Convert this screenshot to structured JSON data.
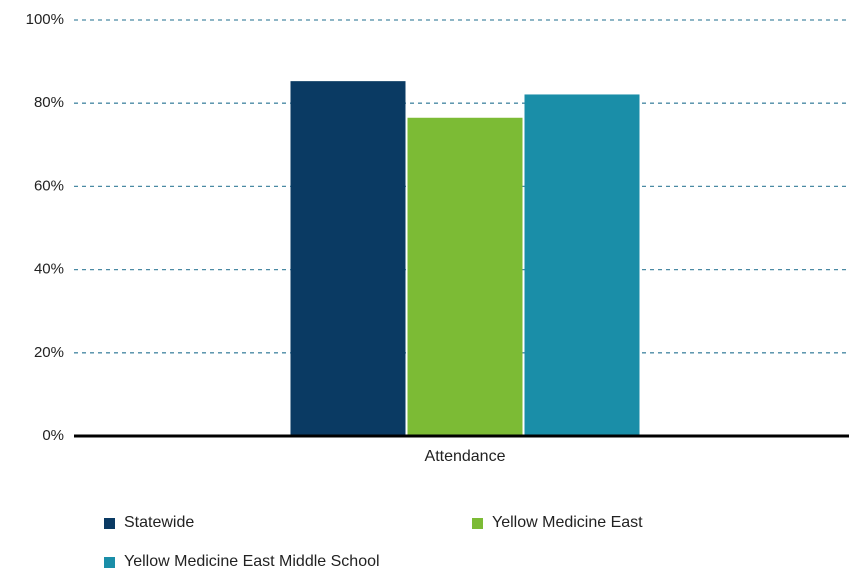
{
  "chart_data": {
    "type": "bar",
    "title": "",
    "xlabel": "",
    "ylabel": "",
    "categories": [
      "Attendance"
    ],
    "ylim": [
      0,
      100
    ],
    "yticks": [
      0,
      20,
      40,
      60,
      80,
      100
    ],
    "ytick_labels": [
      "0%",
      "20%",
      "40%",
      "60%",
      "80%",
      "100%"
    ],
    "grid": true,
    "legend_position": "bottom",
    "series": [
      {
        "name": "Statewide",
        "color": "#0a3a63",
        "values": [
          85.3
        ]
      },
      {
        "name": "Yellow Medicine East",
        "color": "#7cbb35",
        "values": [
          76.5
        ]
      },
      {
        "name": "Yellow Medicine East Middle School",
        "color": "#1a8ea8",
        "values": [
          82.1
        ]
      }
    ]
  }
}
